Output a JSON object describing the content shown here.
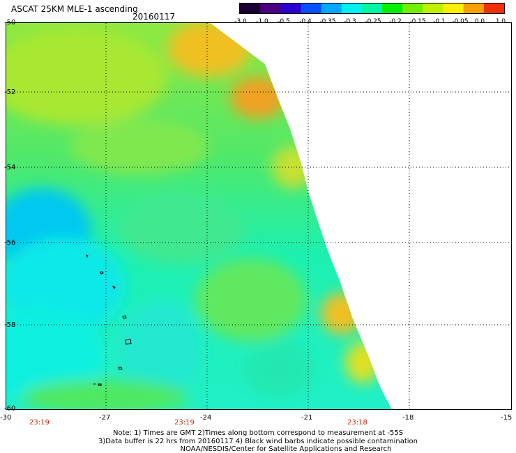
{
  "header": {
    "title": "ASCAT 25KM MLE-1 ascending",
    "date": "20160117"
  },
  "colorbar": {
    "labels": [
      "-3.0",
      "-1.0",
      "-0.5",
      "-0.4",
      "-0.35",
      "-0.3",
      "-0.25",
      "-0.2",
      "-0.15",
      "-0.1",
      "-0.05",
      "0.0",
      "1.0"
    ],
    "colors": [
      "#1a0030",
      "#4a0080",
      "#2a00d0",
      "#0050ff",
      "#00a8ff",
      "#00f0f0",
      "#00f5a0",
      "#00f000",
      "#70f000",
      "#c0f000",
      "#f8f000",
      "#f8a000",
      "#f03000"
    ]
  },
  "map": {
    "lat_labels": [
      "-50",
      "-52",
      "-54",
      "-56",
      "-58",
      "-60"
    ],
    "lon_labels": [
      "-30",
      "-27",
      "-24",
      "-21",
      "-18",
      "-15"
    ],
    "lat_range": [
      -60,
      -50
    ],
    "lon_range": [
      -30,
      -15
    ],
    "grid": "dotted",
    "swath_times": [
      "23:19",
      "23:19",
      "23:18"
    ]
  },
  "notes": {
    "line1": "Note: 1) Times are GMT 2)Times along bottom correspond to measurement at -55S",
    "line2": "3)Data buffer is 22 hrs from 20160117 4) Black wind barbs indicate possible contamination",
    "line3": "NOAA/NESDIS/Center for Satellite Applications and Research"
  }
}
